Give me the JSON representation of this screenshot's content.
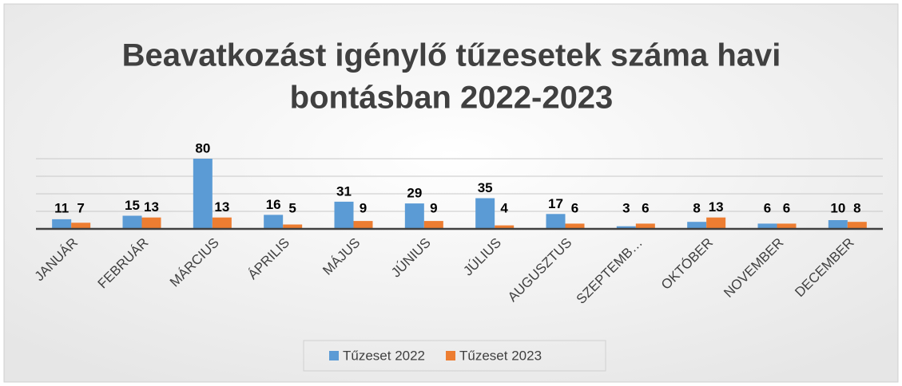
{
  "chart_data": {
    "type": "bar",
    "title": "Beavatkozást igénylő tűzesetek száma havi bontásban 2022-2023",
    "categories": [
      "JANUÁR",
      "FEBRUÁR",
      "MÁRCIUS",
      "ÁPRILIS",
      "MÁJUS",
      "JÚNIUS",
      "JÚLIUS",
      "AUGUSZTUS",
      "SZEPTEMB…",
      "OKTÓBER",
      "NOVEMBER",
      "DECEMBER"
    ],
    "series": [
      {
        "name": "Tűzeset 2022",
        "color": "#5b9bd5",
        "values": [
          11,
          15,
          80,
          16,
          31,
          29,
          35,
          17,
          3,
          8,
          6,
          10
        ]
      },
      {
        "name": "Tűzeset 2023",
        "color": "#ed7d31",
        "values": [
          7,
          13,
          13,
          5,
          9,
          9,
          4,
          6,
          6,
          13,
          6,
          8
        ]
      }
    ],
    "ylim": [
      0,
      80
    ],
    "yticks": [
      0,
      20,
      40,
      60,
      80
    ],
    "grid": true,
    "legend": "bottom"
  }
}
